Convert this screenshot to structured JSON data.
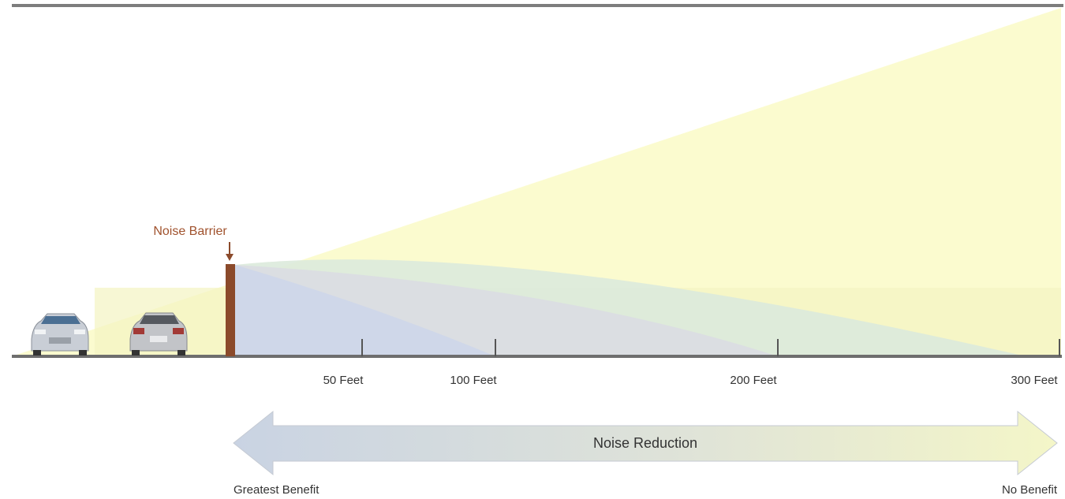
{
  "barrier_label": "Noise Barrier",
  "distances": [
    "50 Feet",
    "100 Feet",
    "200 Feet",
    "300 Feet"
  ],
  "reduction_arrow": {
    "label": "Noise Reduction",
    "left_end": "Greatest Benefit",
    "right_end": "No Benefit"
  }
}
